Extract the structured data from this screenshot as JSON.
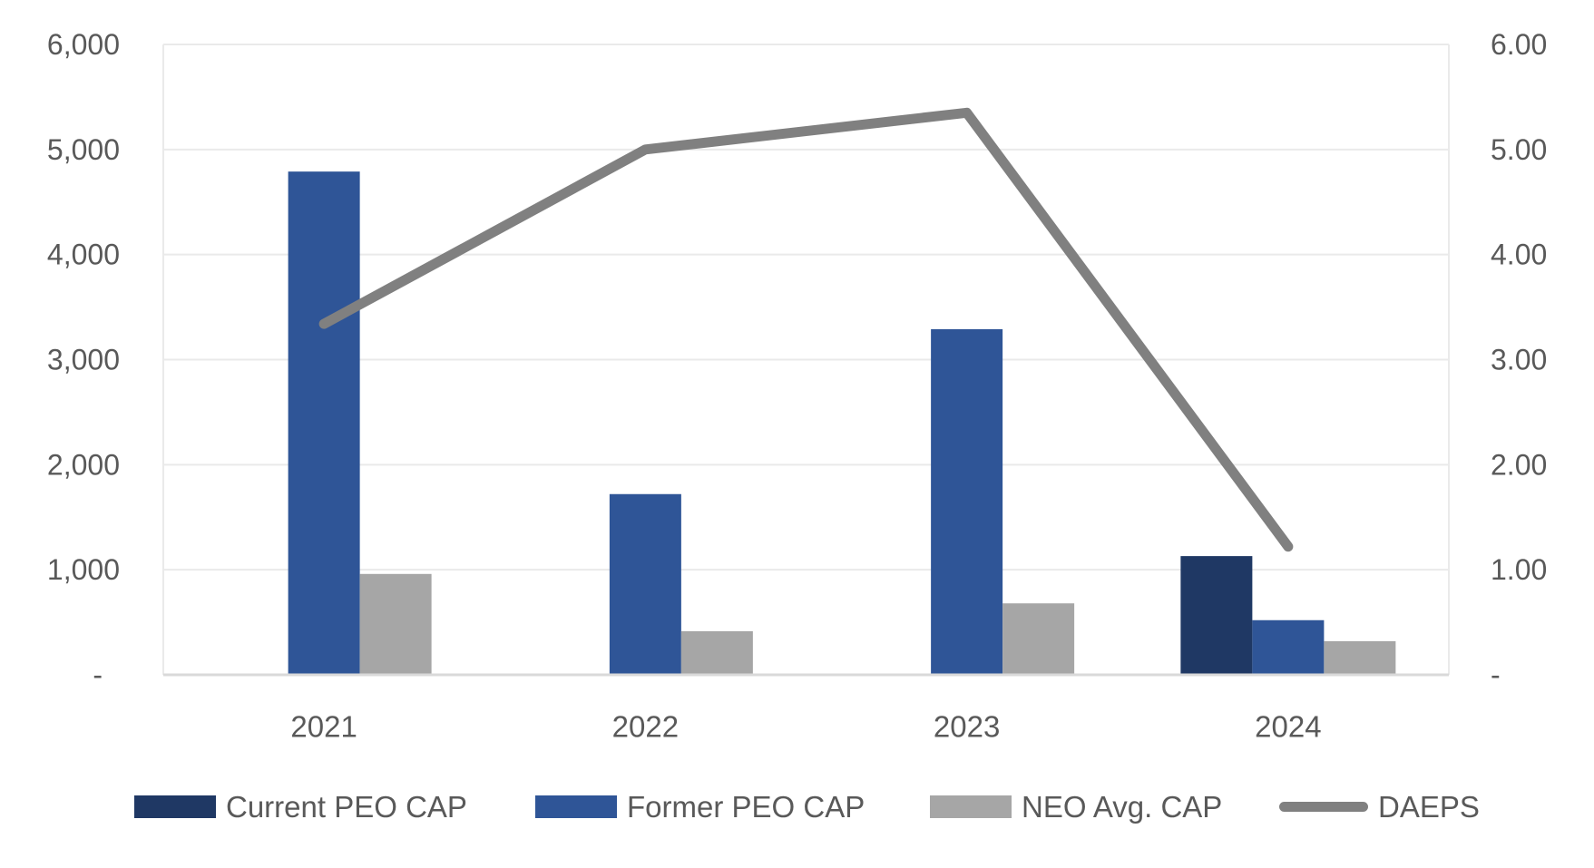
{
  "chart_data": {
    "type": "combo-bar-line",
    "title": "",
    "categories": [
      "2021",
      "2022",
      "2023",
      "2024"
    ],
    "series": [
      {
        "name": "Current PEO CAP",
        "type": "bar",
        "axis": "left",
        "color": "#1F3864",
        "values": [
          null,
          null,
          null,
          1130
        ]
      },
      {
        "name": "Former PEO CAP",
        "type": "bar",
        "axis": "left",
        "color": "#2F5597",
        "values": [
          4790,
          1720,
          3290,
          520
        ]
      },
      {
        "name": "NEO Avg. CAP",
        "type": "bar",
        "axis": "left",
        "color": "#A6A6A6",
        "values": [
          960,
          415,
          680,
          320
        ]
      },
      {
        "name": "DAEPS",
        "type": "line",
        "axis": "right",
        "color": "#808080",
        "values": [
          3.34,
          5.0,
          5.35,
          1.22
        ]
      }
    ],
    "left_axis": {
      "min": 0,
      "max": 6000,
      "step": 1000,
      "tick_labels": [
        "-",
        "1,000",
        "2,000",
        "3,000",
        "4,000",
        "5,000",
        "6,000"
      ]
    },
    "right_axis": {
      "min": 0,
      "max": 6,
      "step": 1,
      "tick_labels": [
        "-",
        "1.00",
        "2.00",
        "3.00",
        "4.00",
        "5.00",
        "6.00"
      ]
    },
    "grid": true,
    "legend_position": "bottom",
    "styles": {
      "background": "#FFFFFF",
      "axis_text_color": "#595959",
      "gridline_color": "#EAEAEA",
      "axis_line_color": "#D9D9D9"
    }
  }
}
